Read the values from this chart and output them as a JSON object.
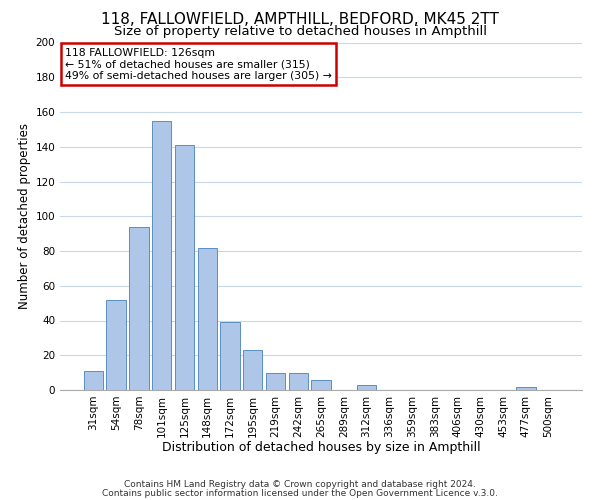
{
  "title1": "118, FALLOWFIELD, AMPTHILL, BEDFORD, MK45 2TT",
  "title2": "Size of property relative to detached houses in Ampthill",
  "xlabel": "Distribution of detached houses by size in Ampthill",
  "ylabel": "Number of detached properties",
  "bar_labels": [
    "31sqm",
    "54sqm",
    "78sqm",
    "101sqm",
    "125sqm",
    "148sqm",
    "172sqm",
    "195sqm",
    "219sqm",
    "242sqm",
    "265sqm",
    "289sqm",
    "312sqm",
    "336sqm",
    "359sqm",
    "383sqm",
    "406sqm",
    "430sqm",
    "453sqm",
    "477sqm",
    "500sqm"
  ],
  "bar_values": [
    11,
    52,
    94,
    155,
    141,
    82,
    39,
    23,
    10,
    10,
    6,
    0,
    3,
    0,
    0,
    0,
    0,
    0,
    0,
    2,
    0
  ],
  "bar_color": "#aec6e8",
  "bar_edge_color": "#5a8fc0",
  "annotation_box_text": "118 FALLOWFIELD: 126sqm\n← 51% of detached houses are smaller (315)\n49% of semi-detached houses are larger (305) →",
  "annotation_box_edge_color": "#cc0000",
  "annotation_box_face_color": "#ffffff",
  "ylim": [
    0,
    200
  ],
  "yticks": [
    0,
    20,
    40,
    60,
    80,
    100,
    120,
    140,
    160,
    180,
    200
  ],
  "footer1": "Contains HM Land Registry data © Crown copyright and database right 2024.",
  "footer2": "Contains public sector information licensed under the Open Government Licence v.3.0.",
  "bg_color": "#ffffff",
  "grid_color": "#c8d8e8",
  "title1_fontsize": 11,
  "title2_fontsize": 9.5,
  "xlabel_fontsize": 9,
  "ylabel_fontsize": 8.5,
  "tick_fontsize": 7.5,
  "footer_fontsize": 6.5
}
